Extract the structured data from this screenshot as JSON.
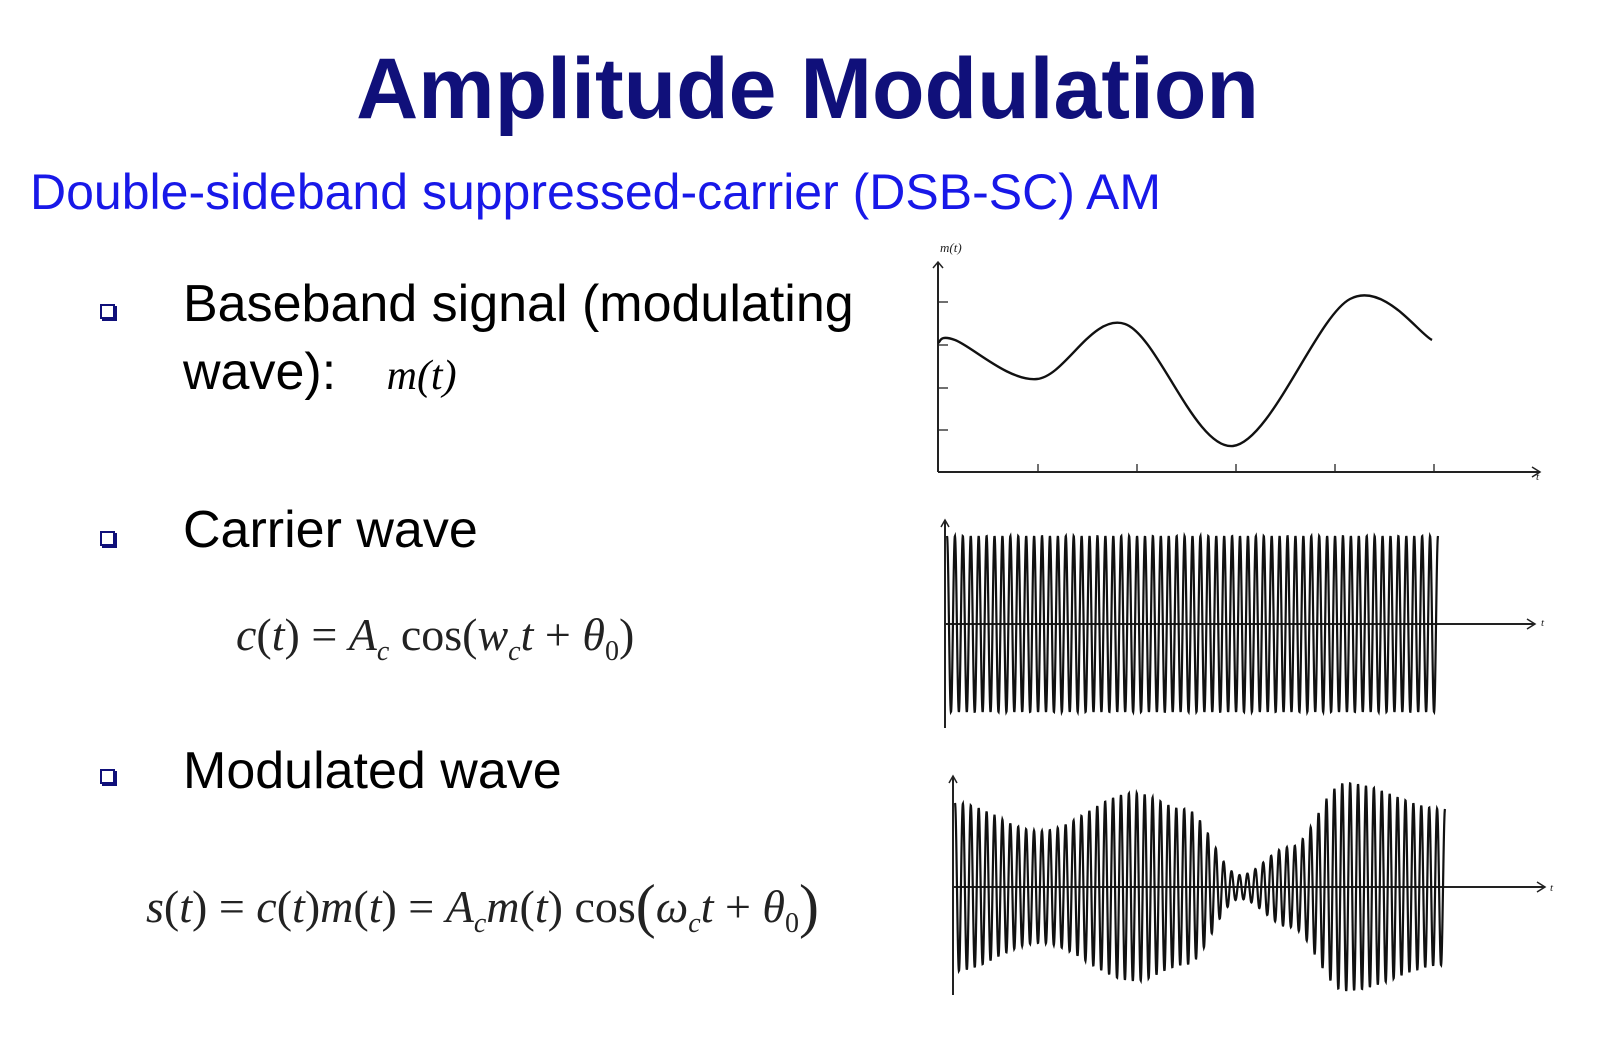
{
  "slide": {
    "title": "Amplitude Modulation",
    "subtitle": "Double-sideband suppressed-carrier (DSB-SC) AM"
  },
  "bullets": [
    {
      "line1": "Baseband signal (modulating",
      "line2": "wave):",
      "expr": "m(t)"
    },
    {
      "line1": "Carrier wave"
    },
    {
      "line1": "Modulated wave"
    }
  ],
  "equations": {
    "carrier": "c(t) = A_c cos(w_c t + θ_0)",
    "modulated": "s(t) = c(t)m(t) = A_c m(t) cos(ω_c t + θ_0)"
  },
  "plots": {
    "baseband": {
      "ylabel": "m(t)",
      "xlabel": "t"
    },
    "carrier": {
      "xlabel": "t"
    },
    "modulated": {
      "xlabel": "t"
    }
  },
  "colors": {
    "title": "#10107a",
    "subtitle": "#1818e8",
    "bullet": "#10107a"
  }
}
